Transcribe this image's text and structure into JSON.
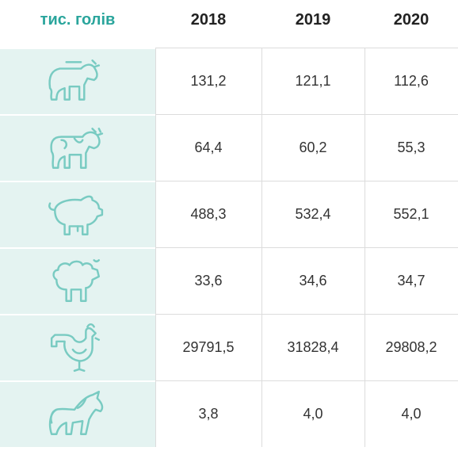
{
  "table": {
    "header": [
      "тис. голів",
      "2018",
      "2019",
      "2020"
    ],
    "rows": [
      [
        "131,2",
        "121,1",
        "112,6"
      ],
      [
        "64,4",
        "60,2",
        "55,3"
      ],
      [
        "488,3",
        "532,4",
        "552,1"
      ],
      [
        "33,6",
        "34,6",
        "34,7"
      ],
      [
        "29791,5",
        "31828,4",
        "29808,2"
      ],
      [
        "3,8",
        "4,0",
        "4,0"
      ]
    ]
  }
}
